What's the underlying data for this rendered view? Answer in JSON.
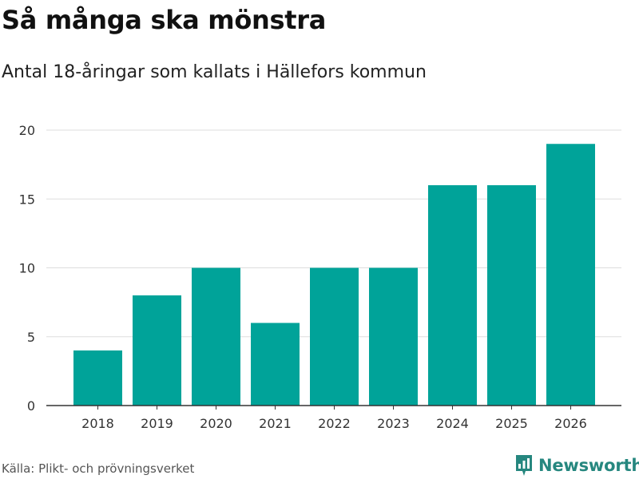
{
  "header": {
    "title": "Så många ska mönstra",
    "subtitle": "Antal 18-åringar som kallats i Hällefors kommun"
  },
  "footer": {
    "source": "Källa: Plikt- och prövningsverket",
    "brand": "Newsworthy"
  },
  "colors": {
    "bar": "#00a399",
    "grid": "#dddddd",
    "axis": "#333333",
    "brand": "#26877f"
  },
  "chart_data": {
    "type": "bar",
    "title": "Så många ska mönstra",
    "subtitle": "Antal 18-åringar som kallats i Hällefors kommun",
    "xlabel": "",
    "ylabel": "",
    "categories": [
      "2018",
      "2019",
      "2020",
      "2021",
      "2022",
      "2023",
      "2024",
      "2025",
      "2026"
    ],
    "values": [
      4,
      8,
      10,
      6,
      10,
      10,
      16,
      16,
      19
    ],
    "ylim": [
      0,
      20
    ],
    "yticks": [
      0,
      5,
      10,
      15,
      20
    ],
    "grid": true,
    "legend": "none"
  }
}
